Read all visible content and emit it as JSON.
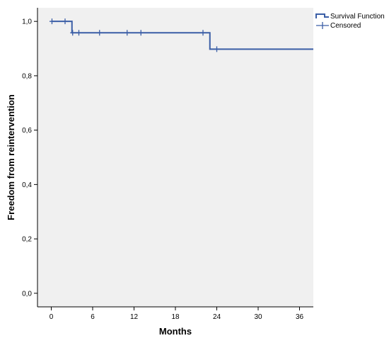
{
  "chart_data": {
    "type": "line",
    "subtype": "kaplan-meier",
    "xlabel": "Months",
    "ylabel": "Freedom from reintervention",
    "xlim": [
      -2,
      38
    ],
    "ylim": [
      -0.05,
      1.05
    ],
    "x_ticks": [
      0,
      6,
      12,
      18,
      24,
      30,
      36
    ],
    "y_ticks": [
      {
        "value": 0.0,
        "label": "0,0"
      },
      {
        "value": 0.2,
        "label": "0,2"
      },
      {
        "value": 0.4,
        "label": "0,4"
      },
      {
        "value": 0.6,
        "label": "0,6"
      },
      {
        "value": 0.8,
        "label": "0,8"
      },
      {
        "value": 1.0,
        "label": "1,0"
      }
    ],
    "grid": false,
    "plot_background": "#f0f0f0",
    "series_color": "#3b5ea6",
    "legend_position": "top-right",
    "legend": [
      "Survival Function",
      "Censored"
    ],
    "series": [
      {
        "name": "Survival Function",
        "steps": [
          {
            "x": 0,
            "y": 1.0
          },
          {
            "x": 3,
            "y": 0.958
          },
          {
            "x": 23,
            "y": 0.898
          },
          {
            "x": 38,
            "y": 0.898
          }
        ]
      },
      {
        "name": "Censored",
        "points": [
          {
            "x": 0.1,
            "y": 1.0
          },
          {
            "x": 2,
            "y": 1.0
          },
          {
            "x": 3.1,
            "y": 0.958
          },
          {
            "x": 4,
            "y": 0.958
          },
          {
            "x": 7,
            "y": 0.958
          },
          {
            "x": 11,
            "y": 0.958
          },
          {
            "x": 13,
            "y": 0.958
          },
          {
            "x": 22,
            "y": 0.958
          },
          {
            "x": 24,
            "y": 0.898
          }
        ]
      }
    ]
  }
}
